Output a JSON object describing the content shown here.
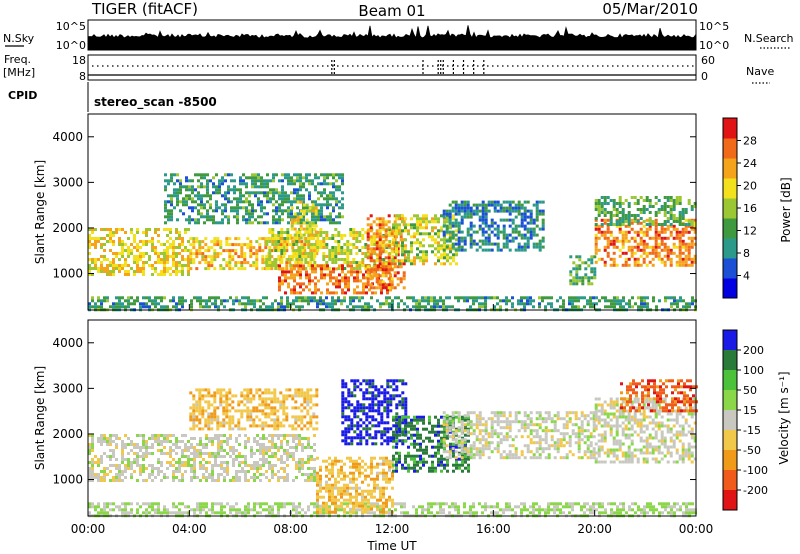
{
  "header": {
    "title_left": "TIGER (fitACF)",
    "title_center": "Beam 01",
    "title_right": "05/Mar/2010"
  },
  "top_panel": {
    "nsky_label": "N.Sky",
    "nsearch_label": "N.Search",
    "left_ticks": [
      "10^5",
      "10^0"
    ],
    "right_ticks": [
      "10^5",
      "10^0"
    ]
  },
  "freq_panel": {
    "freq_label": "Freq.",
    "freq_unit": "[MHz]",
    "left_ticks": [
      "18",
      "8"
    ],
    "right_ticks": [
      "60",
      "0"
    ],
    "nave_label": "Nave"
  },
  "cpid": {
    "label": "CPID",
    "value": "stereo_scan -8500"
  },
  "chart_data": [
    {
      "type": "heatmap",
      "name": "power",
      "ylabel": "Slant Range [km]",
      "ylim": [
        200,
        4500
      ],
      "yticks": [
        "1000",
        "2000",
        "3000",
        "4000"
      ],
      "colorbar_label": "Power [dB]",
      "colorbar_ticks": [
        "4",
        "8",
        "12",
        "16",
        "20",
        "24",
        "28"
      ],
      "colorscale": [
        "#0000e0",
        "#1a4fd6",
        "#2b9a8a",
        "#3f9a3f",
        "#9bc832",
        "#f2e11c",
        "#f5a31a",
        "#f06a1a",
        "#e01414"
      ],
      "regions": [
        {
          "x0": 0.0,
          "x1": 24.0,
          "y0": 200,
          "y1": 500,
          "value": 10
        },
        {
          "x0": 0.0,
          "x1": 4.0,
          "y0": 1000,
          "y1": 2000,
          "value": 20
        },
        {
          "x0": 4.0,
          "x1": 9.0,
          "y0": 1100,
          "y1": 1800,
          "value": 22
        },
        {
          "x0": 7.0,
          "x1": 12.0,
          "y0": 1100,
          "y1": 2000,
          "value": 18
        },
        {
          "x0": 7.5,
          "x1": 12.0,
          "y0": 600,
          "y1": 1200,
          "value": 27
        },
        {
          "x0": 11.0,
          "x1": 12.5,
          "y0": 700,
          "y1": 2300,
          "value": 26
        },
        {
          "x0": 12.0,
          "x1": 14.5,
          "y0": 1200,
          "y1": 2300,
          "value": 18
        },
        {
          "x0": 14.0,
          "x1": 18.0,
          "y0": 1500,
          "y1": 2600,
          "value": 8
        },
        {
          "x0": 3.0,
          "x1": 10.0,
          "y0": 2100,
          "y1": 3200,
          "value": 10
        },
        {
          "x0": 8.0,
          "x1": 9.0,
          "y0": 1800,
          "y1": 2600,
          "value": 20
        },
        {
          "x0": 19.0,
          "x1": 20.0,
          "y0": 800,
          "y1": 1400,
          "value": 12
        },
        {
          "x0": 20.0,
          "x1": 24.0,
          "y0": 1200,
          "y1": 2200,
          "value": 26
        },
        {
          "x0": 20.0,
          "x1": 24.0,
          "y0": 2100,
          "y1": 2700,
          "value": 12
        }
      ]
    },
    {
      "type": "heatmap",
      "name": "velocity",
      "ylabel": "Slant Range [km]",
      "ylim": [
        200,
        4500
      ],
      "yticks": [
        "1000",
        "2000",
        "3000",
        "4000"
      ],
      "colorbar_label": "Velocity [m s⁻¹]",
      "colorbar_ticks": [
        "200",
        "100",
        "50",
        "15",
        "-15",
        "-50",
        "-100",
        "-200"
      ],
      "colorscale": [
        "#1a1ae6",
        "#2a7a3a",
        "#4cc23a",
        "#8ad84a",
        "#c8c8c0",
        "#f2c84a",
        "#f09a1a",
        "#f05a1a",
        "#e01414"
      ],
      "regions": [
        {
          "x0": 0.0,
          "x1": 24.0,
          "y0": 200,
          "y1": 500,
          "value": 30
        },
        {
          "x0": 0.0,
          "x1": 9.0,
          "y0": 1000,
          "y1": 2000,
          "value": 0
        },
        {
          "x0": 4.0,
          "x1": 9.0,
          "y0": 2100,
          "y1": 3000,
          "value": -60
        },
        {
          "x0": 9.0,
          "x1": 12.0,
          "y0": 300,
          "y1": 1500,
          "value": -60
        },
        {
          "x0": 10.0,
          "x1": 12.5,
          "y0": 1800,
          "y1": 3200,
          "value": 200
        },
        {
          "x0": 12.0,
          "x1": 15.0,
          "y0": 1200,
          "y1": 2400,
          "value": 150
        },
        {
          "x0": 14.0,
          "x1": 20.0,
          "y0": 1500,
          "y1": 2500,
          "value": 0
        },
        {
          "x0": 20.0,
          "x1": 24.0,
          "y0": 1400,
          "y1": 2800,
          "value": 0
        },
        {
          "x0": 21.0,
          "x1": 24.0,
          "y0": 2500,
          "y1": 3200,
          "value": -150
        }
      ]
    }
  ],
  "x_axis": {
    "label": "Time UT",
    "ticks": [
      "00:00",
      "04:00",
      "08:00",
      "12:00",
      "16:00",
      "20:00",
      "00:00"
    ],
    "range": [
      0,
      24
    ]
  }
}
